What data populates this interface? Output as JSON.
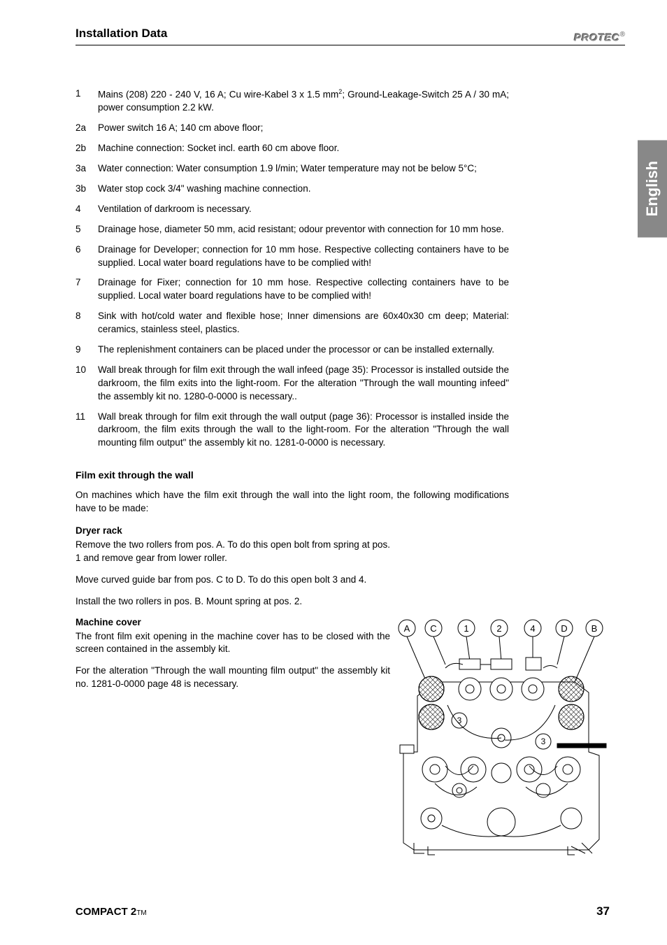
{
  "header": {
    "section_title": "Installation Data",
    "logo_text": "PROTEC",
    "logo_symbol": "®"
  },
  "side_tab": {
    "label": "English"
  },
  "list": [
    {
      "num": "1",
      "text": "Mains (208) 220 - 240 V, 16 A; Cu wire-Kabel 3 x 1.5 mm²; Ground-Leakage-Switch 25 A / 30 mA; power consumption 2.2 kW."
    },
    {
      "num": "2a",
      "text": "Power switch 16 A; 140 cm above floor;"
    },
    {
      "num": "2b",
      "text": "Machine connection: Socket incl. earth 60 cm above floor."
    },
    {
      "num": "3a",
      "text": "Water connection: Water consumption 1.9 l/min; Water temperature may not be below 5°C;"
    },
    {
      "num": "3b",
      "text": "Water stop cock 3/4\" washing machine connection."
    },
    {
      "num": "4",
      "text": "Ventilation of darkroom is necessary."
    },
    {
      "num": "5",
      "text": "Drainage hose, diameter 50 mm, acid resistant; odour preventor with connection for 10 mm hose."
    },
    {
      "num": "6",
      "text": "Drainage for Developer; connection for 10 mm hose. Respective collecting containers have to be supplied. Local water board regulations have to be complied with!"
    },
    {
      "num": "7",
      "text": "Drainage for Fixer; connection for 10 mm hose. Respective collecting containers have to be supplied. Local water board regulations have to be complied with!"
    },
    {
      "num": "8",
      "text": "Sink with hot/cold water and flexible hose; Inner dimensions are 60x40x30 cm deep; Material: ceramics, stainless steel, plastics."
    },
    {
      "num": "9",
      "text": "The replenishment containers can be placed under the processor or can be installed externally."
    },
    {
      "num": "10",
      "text_parts": [
        "Wall break through for film exit through the wall infeed (",
        "page 35",
        "): Processor is installed outside the darkroom, the film exits into the light-room. For the alteration \"Through the wall mounting infeed\" the assembly kit no. 1280-0-0000 is necessary.."
      ]
    },
    {
      "num": "11",
      "text_parts": [
        "Wall break through for film exit through the wall output (",
        "page 36",
        "): Processor is installed inside the darkroom, the film exits through the wall to the light-room. For the alteration \"Through the wall mounting film output\" the assembly kit no. 1281-0-0000 is necessary."
      ]
    }
  ],
  "subsection": {
    "title": "Film exit through the wall",
    "intro": "On machines which have the film exit through the wall into the light room, the following modifications have to be made:",
    "dryer_rack": {
      "heading": "Dryer rack",
      "para1": "Remove the two rollers from pos. A. To do this open bolt from spring at pos. 1 and remove gear from lower roller.",
      "para2": "Move curved guide bar from pos. C to D. To do this open bolt 3 and 4.",
      "para3": "Install the two rollers in pos. B. Mount spring at pos. 2."
    },
    "machine_cover": {
      "heading": "Machine cover",
      "para1": "The front film exit opening in the machine cover has to be closed with the screen contained in the assembly kit.",
      "para2_parts": [
        "For the alteration \"Through the wall mounting film output\" the assembly kit no. 1281-0-0000 ",
        "page 48",
        " is necessary."
      ]
    }
  },
  "diagram": {
    "labels": [
      "A",
      "C",
      "1",
      "2",
      "4",
      "D",
      "B"
    ],
    "inner_labels": [
      "3",
      "3"
    ],
    "stroke_color": "#000000",
    "fill_color": "#ffffff",
    "hatch_color": "#000000"
  },
  "footer": {
    "product": "COMPACT 2",
    "tm": "TM",
    "page": "37"
  },
  "colors": {
    "text": "#000000",
    "background": "#ffffff",
    "side_tab_bg": "#888888",
    "side_tab_text": "#ffffff",
    "logo_color": "#888888"
  },
  "typography": {
    "body_fontsize": 13.5,
    "title_fontsize": 17,
    "subsection_fontsize": 14,
    "font_family": "Arial"
  }
}
